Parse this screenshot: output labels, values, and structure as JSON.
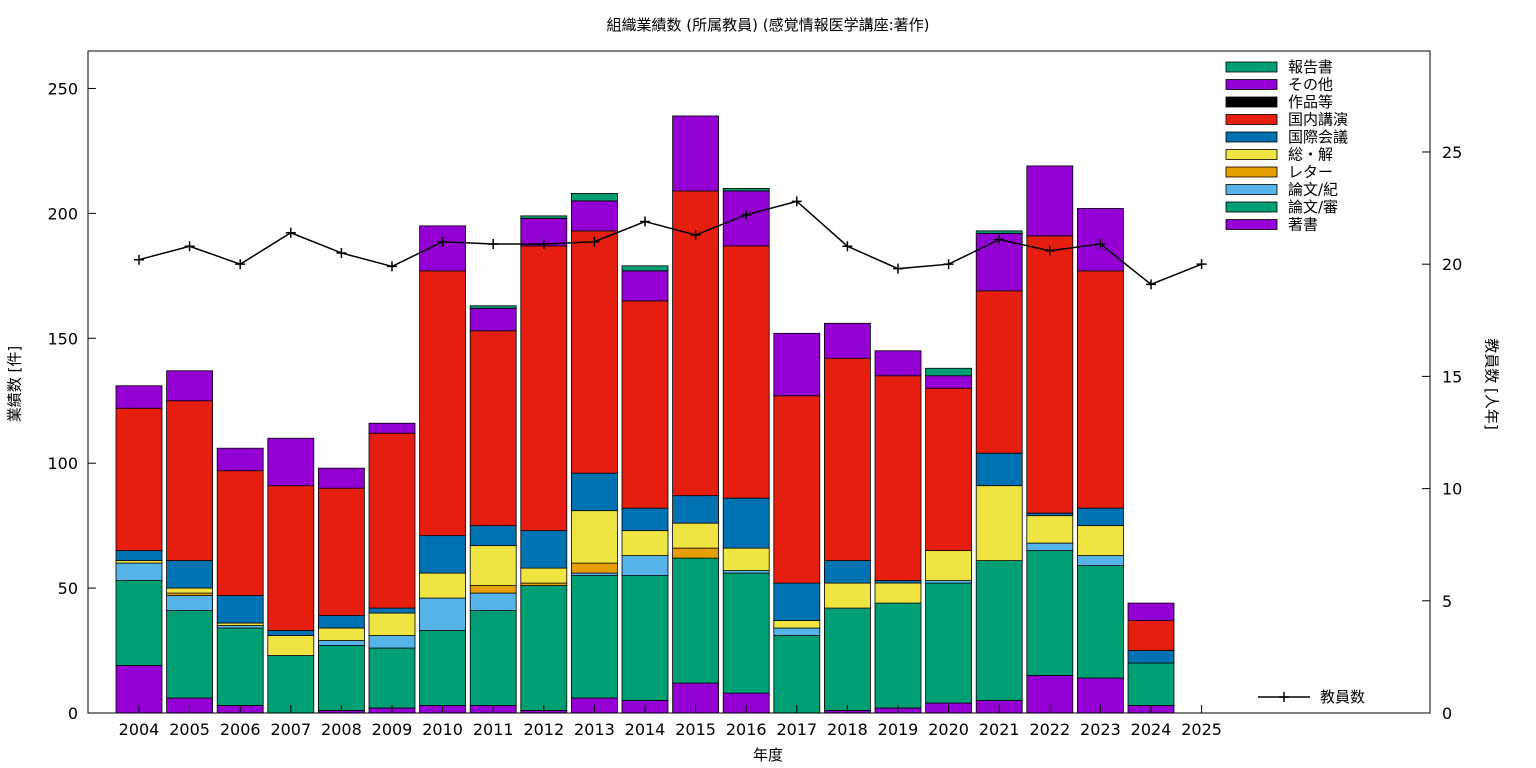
{
  "chart_data": {
    "type": "bar",
    "title": "組織業績数 (所属教員) (感覚情報医学講座:著作)",
    "xlabel": "年度",
    "ylabel": "業績数 [件]",
    "y2label": "教員数 [人年]",
    "ylim": [
      0,
      265
    ],
    "y2lim": [
      0,
      29.5
    ],
    "yticks": [
      0,
      50,
      100,
      150,
      200,
      250
    ],
    "y2ticks": [
      0,
      5,
      10,
      15,
      20,
      25
    ],
    "stacked": true,
    "grid": false,
    "legend_position": "top-right",
    "categories": [
      "2004",
      "2005",
      "2006",
      "2007",
      "2008",
      "2009",
      "2010",
      "2011",
      "2012",
      "2013",
      "2014",
      "2015",
      "2016",
      "2017",
      "2018",
      "2019",
      "2020",
      "2021",
      "2022",
      "2023",
      "2024",
      "2025"
    ],
    "series": [
      {
        "name": "著書",
        "color": "#9400d3",
        "values": [
          19,
          6,
          3,
          0,
          1,
          2,
          3,
          3,
          1,
          6,
          5,
          12,
          8,
          0,
          1,
          2,
          4,
          5,
          15,
          14,
          3,
          0
        ]
      },
      {
        "name": "論文/審",
        "color": "#009e73",
        "values": [
          34,
          35,
          31,
          23,
          26,
          24,
          30,
          38,
          50,
          49,
          50,
          50,
          48,
          31,
          41,
          42,
          48,
          56,
          50,
          45,
          17,
          0
        ]
      },
      {
        "name": "論文/紀",
        "color": "#56b4e9",
        "values": [
          7,
          6,
          1,
          0,
          2,
          5,
          13,
          7,
          0,
          1,
          8,
          0,
          1,
          3,
          0,
          0,
          1,
          0,
          3,
          4,
          0,
          0
        ]
      },
      {
        "name": "レター",
        "color": "#e69f00",
        "values": [
          0,
          1,
          0,
          0,
          0,
          0,
          0,
          3,
          1,
          4,
          0,
          4,
          0,
          0,
          0,
          0,
          0,
          0,
          0,
          0,
          0,
          0
        ]
      },
      {
        "name": "総・解",
        "color": "#f0e442",
        "values": [
          1,
          2,
          1,
          8,
          5,
          9,
          10,
          16,
          6,
          21,
          10,
          10,
          9,
          3,
          10,
          8,
          12,
          30,
          11,
          12,
          0,
          0
        ]
      },
      {
        "name": "国際会議",
        "color": "#0072b2",
        "values": [
          4,
          11,
          11,
          2,
          5,
          2,
          15,
          8,
          15,
          15,
          9,
          11,
          20,
          15,
          9,
          1,
          0,
          13,
          1,
          7,
          5,
          0
        ]
      },
      {
        "name": "国内講演",
        "color": "#e51e10",
        "values": [
          57,
          64,
          50,
          58,
          51,
          70,
          106,
          78,
          114,
          97,
          83,
          122,
          101,
          75,
          81,
          82,
          65,
          65,
          111,
          95,
          12,
          0
        ]
      },
      {
        "name": "作品等",
        "color": "#000000",
        "values": [
          0,
          0,
          0,
          0,
          0,
          0,
          0,
          0,
          0,
          0,
          0,
          0,
          0,
          0,
          0,
          0,
          0,
          0,
          0,
          0,
          0,
          0
        ]
      },
      {
        "name": "その他",
        "color": "#9400d3",
        "values": [
          9,
          12,
          9,
          19,
          8,
          4,
          18,
          9,
          11,
          12,
          12,
          30,
          22,
          25,
          14,
          10,
          5,
          23,
          28,
          25,
          7,
          0
        ]
      },
      {
        "name": "報告書",
        "color": "#009e73",
        "values": [
          0,
          0,
          0,
          0,
          0,
          0,
          0,
          1,
          1,
          3,
          2,
          0,
          1,
          0,
          0,
          0,
          3,
          1,
          0,
          0,
          0,
          0
        ]
      }
    ],
    "line_series": {
      "name": "教員数",
      "axis": "y2",
      "color": "#000000",
      "values": [
        20.2,
        20.8,
        20.0,
        21.4,
        20.5,
        19.9,
        21.0,
        20.9,
        20.9,
        21.0,
        21.9,
        21.3,
        22.2,
        22.8,
        20.8,
        19.8,
        20.0,
        21.1,
        20.6,
        20.9,
        19.1,
        20.0
      ]
    }
  }
}
